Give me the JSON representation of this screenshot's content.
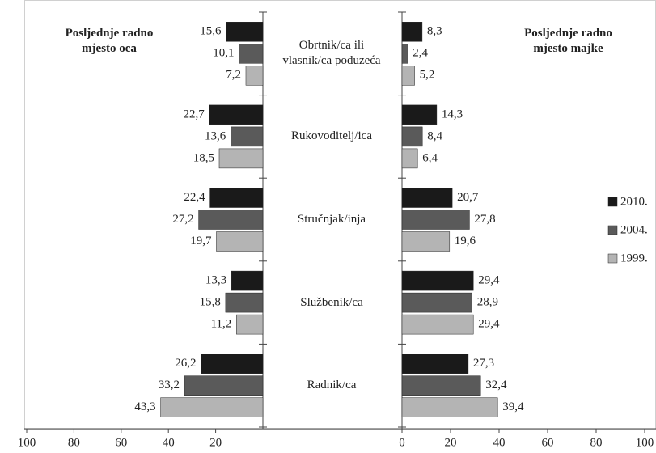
{
  "chart_data": [
    {
      "type": "bar",
      "orientation": "horizontal",
      "title": "Posljednje radno mjesto oca",
      "categories": [
        "Obrtnik/ca ili vlasnik/ca poduzeća",
        "Rukovoditelj/ica",
        "Stručnjak/inja",
        "Službenik/ca",
        "Radnik/ca"
      ],
      "series": [
        {
          "color": "#1a1a1a",
          "values": [
            15.6,
            22.7,
            22.4,
            13.3,
            26.2
          ],
          "value_labels": [
            "15,6",
            "22,7",
            "22,4",
            "13,3",
            "26,2"
          ]
        },
        {
          "color": "#5a5a5a",
          "values": [
            10.1,
            13.6,
            27.2,
            15.8,
            33.2
          ],
          "value_labels": [
            "10,1",
            "13,6",
            "27,2",
            "15,8",
            "33,2"
          ]
        },
        {
          "color": "#b4b4b4",
          "values": [
            7.2,
            18.5,
            19.7,
            11.2,
            43.3
          ],
          "value_labels": [
            "7,2",
            "18,5",
            "19,7",
            "11,2",
            "43,3"
          ]
        }
      ],
      "xlim": [
        100,
        0
      ],
      "xticks": [
        100,
        80,
        60,
        40,
        20
      ]
    },
    {
      "type": "bar",
      "orientation": "horizontal",
      "title": "Posljednje radno mjesto majke",
      "series": [
        {
          "name": "2010.",
          "color": "#1a1a1a",
          "values": [
            8.3,
            14.3,
            20.7,
            29.4,
            27.3
          ],
          "value_labels": [
            "8,3",
            "14,3",
            "20,7",
            "29,4",
            "27,3"
          ]
        },
        {
          "name": "2004.",
          "color": "#5a5a5a",
          "values": [
            2.4,
            8.4,
            27.8,
            28.9,
            32.4
          ],
          "value_labels": [
            "2,4",
            "8,4",
            "27,8",
            "28,9",
            "32,4"
          ]
        },
        {
          "name": "1999.",
          "color": "#b4b4b4",
          "values": [
            5.2,
            6.4,
            19.6,
            29.4,
            39.4
          ],
          "value_labels": [
            "5,2",
            "6,4",
            "19,6",
            "29,4",
            "39,4"
          ]
        }
      ],
      "xlim": [
        0,
        100
      ],
      "xticks": [
        0,
        20,
        40,
        60,
        80,
        100
      ],
      "legend": "right"
    }
  ]
}
